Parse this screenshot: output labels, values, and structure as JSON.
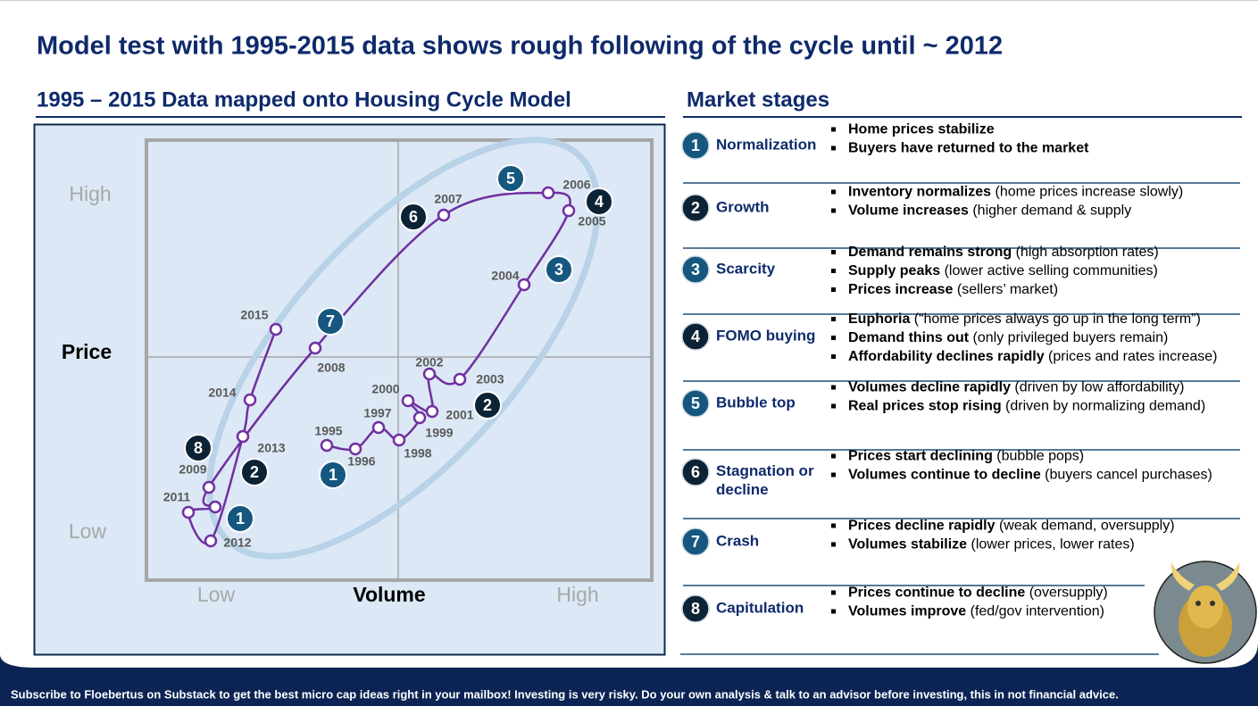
{
  "title": "Model test with 1995-2015 data shows rough following of the cycle until ~ 2012",
  "left": {
    "heading": "1995 – 2015 Data mapped onto Housing Cycle Model",
    "y_label": "Price",
    "x_label": "Volume",
    "y_high": "High",
    "y_low": "Low",
    "x_low": "Low",
    "x_high": "High",
    "points": [
      "1995",
      "1996",
      "1997",
      "1998",
      "1999",
      "2000",
      "2001",
      "2002",
      "2003",
      "2004",
      "2005",
      "2006",
      "2007",
      "2008",
      "2009",
      null,
      "2011",
      "2012",
      "2013",
      "2014",
      "2015"
    ],
    "markers": [
      "5",
      "6",
      "4",
      "3",
      "2",
      "7",
      "8",
      "2",
      "1",
      "1"
    ]
  },
  "right": {
    "heading": "Market stages",
    "stages": [
      {
        "number": "1",
        "name": [
          "Normalization"
        ],
        "bullets": [
          {
            "bold": "Home prices stabilize",
            "text": ""
          },
          {
            "bold": "Buyers  have returned to the market",
            "text": ""
          }
        ]
      },
      {
        "number": "2",
        "name": [
          "Growth"
        ],
        "bullets": [
          {
            "bold": "Inventory normalizes",
            "text": " (home prices increase slowly)"
          },
          {
            "bold": "Volume increases",
            "text": " (higher  demand & supply"
          }
        ]
      },
      {
        "number": "3",
        "name": [
          "Scarcity"
        ],
        "bullets": [
          {
            "bold": "Demand remains strong",
            "text": " (high absorption rates)"
          },
          {
            "bold": "Supply peaks",
            "text": " (lower active selling communities)"
          },
          {
            "bold": "Prices increase",
            "text": " (sellers’ market)"
          }
        ]
      },
      {
        "number": "4",
        "name": [
          "FOMO buying"
        ],
        "bullets": [
          {
            "bold": "Euphoria",
            "text": " (“home prices always go up in the long term”)"
          },
          {
            "bold": "Demand thins out",
            "text": " (only privileged buyers remain)"
          },
          {
            "bold": "Affordability declines rapidly",
            "text": " (prices and rates increase)"
          }
        ]
      },
      {
        "number": "5",
        "name": [
          "Bubble top"
        ],
        "bullets": [
          {
            "bold": "Volumes decline rapidly",
            "text": " (driven by low affordability)"
          },
          {
            "bold": "Real prices stop rising",
            "text": " (driven by normalizing demand)"
          }
        ]
      },
      {
        "number": "6",
        "name": [
          "Stagnation or",
          "decline"
        ],
        "bullets": [
          {
            "bold": "Prices start declining",
            "text": " (bubble pops)"
          },
          {
            "bold": "Volumes continue to decline",
            "text": " (buyers cancel purchases)"
          }
        ]
      },
      {
        "number": "7",
        "name": [
          "Crash"
        ],
        "bullets": [
          {
            "bold": "Prices decline rapidly",
            "text": " (weak demand, oversupply)"
          },
          {
            "bold": "Volumes stabilize",
            "text": " (lower prices, lower rates)"
          }
        ]
      },
      {
        "number": "8",
        "name": [
          "Capitulation"
        ],
        "bullets": [
          {
            "bold": "Prices continue to decline",
            "text": " (oversupply)"
          },
          {
            "bold": "Volumes improve",
            "text": " (fed/gov intervention)"
          }
        ]
      }
    ]
  },
  "footer": "Subscribe to Floebertus on Substack to get the best micro cap ideas right in your mailbox!   Investing is very risky.   Do your own analysis & talk to an advisor before investing, this in not financial advice."
}
